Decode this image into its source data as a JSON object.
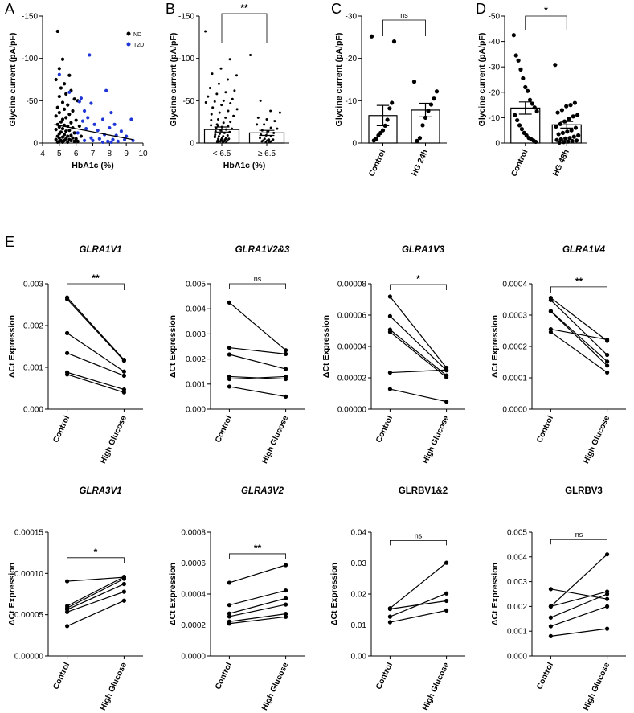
{
  "figure": {
    "panel_letters": [
      "A",
      "B",
      "C",
      "D",
      "E"
    ]
  },
  "colors": {
    "nd": "#000000",
    "t2d": "#1f35d6",
    "bar_fill": "#ffffff",
    "axis": "#000000"
  },
  "chart_data": [
    {
      "id": "A",
      "type": "scatter",
      "xlabel": "HbA1c (%)",
      "ylabel": "Glycine current (pA/pF)",
      "xlim": [
        4,
        10
      ],
      "ylim": [
        0,
        -150
      ],
      "xticks": [
        "4",
        "5",
        "6",
        "7",
        "8",
        "9",
        "10"
      ],
      "yticks": [
        "0",
        "-50",
        "-100",
        "-150"
      ],
      "legend": [
        {
          "name": "ND",
          "color": "#000000"
        },
        {
          "name": "T2D",
          "color": "#1f35d6"
        }
      ],
      "trendline": {
        "x": [
          4.7,
          9.4
        ],
        "y": [
          -22,
          -4
        ]
      },
      "series": [
        {
          "name": "ND",
          "color": "#000000",
          "points": [
            [
              4.9,
              -132
            ],
            [
              5.2,
              -99
            ],
            [
              5.0,
              -88
            ],
            [
              5.6,
              -80
            ],
            [
              4.8,
              -75
            ],
            [
              5.3,
              -70
            ],
            [
              5.1,
              -65
            ],
            [
              5.7,
              -62
            ],
            [
              5.4,
              -58
            ],
            [
              5.0,
              -55
            ],
            [
              5.9,
              -52
            ],
            [
              5.2,
              -48
            ],
            [
              5.5,
              -45
            ],
            [
              4.9,
              -42
            ],
            [
              6.1,
              -50
            ],
            [
              5.3,
              -40
            ],
            [
              5.8,
              -38
            ],
            [
              5.0,
              -36
            ],
            [
              5.6,
              -34
            ],
            [
              4.8,
              -32
            ],
            [
              5.4,
              -30
            ],
            [
              5.2,
              -28
            ],
            [
              6.0,
              -27
            ],
            [
              5.1,
              -25
            ],
            [
              5.7,
              -24
            ],
            [
              4.9,
              -22
            ],
            [
              5.3,
              -21
            ],
            [
              5.5,
              -20
            ],
            [
              5.0,
              -19
            ],
            [
              5.8,
              -18
            ],
            [
              5.2,
              -17
            ],
            [
              4.8,
              -16
            ],
            [
              5.6,
              -15
            ],
            [
              5.4,
              -14
            ],
            [
              5.1,
              -13
            ],
            [
              5.9,
              -12
            ],
            [
              5.0,
              -11
            ],
            [
              5.3,
              -10
            ],
            [
              5.7,
              -9
            ],
            [
              4.9,
              -8
            ],
            [
              5.5,
              -8
            ],
            [
              5.2,
              -7
            ],
            [
              5.8,
              -6
            ],
            [
              5.0,
              -6
            ],
            [
              5.4,
              -5
            ],
            [
              4.8,
              -4
            ],
            [
              5.6,
              -4
            ],
            [
              5.1,
              -3
            ],
            [
              5.3,
              -3
            ],
            [
              5.9,
              -2
            ],
            [
              5.0,
              -2
            ],
            [
              5.2,
              -1
            ],
            [
              5.5,
              -1
            ],
            [
              4.9,
              -1
            ],
            [
              6.2,
              -20
            ],
            [
              6.3,
              -8
            ],
            [
              6.0,
              -5
            ],
            [
              5.7,
              -3
            ],
            [
              6.1,
              -2
            ]
          ]
        },
        {
          "name": "T2D",
          "color": "#1f35d6",
          "points": [
            [
              6.8,
              -104
            ],
            [
              5.0,
              -81
            ],
            [
              7.8,
              -62
            ],
            [
              5.6,
              -60
            ],
            [
              6.3,
              -53
            ],
            [
              6.2,
              -49
            ],
            [
              6.9,
              -47
            ],
            [
              6.5,
              -38
            ],
            [
              8.1,
              -36
            ],
            [
              6.7,
              -30
            ],
            [
              7.6,
              -28
            ],
            [
              9.3,
              -28
            ],
            [
              6.4,
              -26
            ],
            [
              8.3,
              -22
            ],
            [
              7.1,
              -22
            ],
            [
              8.0,
              -18
            ],
            [
              6.6,
              -17
            ],
            [
              7.3,
              -15
            ],
            [
              8.7,
              -14
            ],
            [
              6.1,
              -12
            ],
            [
              7.7,
              -10
            ],
            [
              8.4,
              -9
            ],
            [
              9.0,
              -8
            ],
            [
              6.9,
              -6
            ],
            [
              7.4,
              -5
            ],
            [
              8.2,
              -4
            ],
            [
              8.9,
              -4
            ],
            [
              6.5,
              -3
            ],
            [
              7.0,
              -3
            ],
            [
              7.9,
              -2
            ],
            [
              8.5,
              -2
            ],
            [
              9.4,
              -3
            ],
            [
              7.6,
              -1
            ],
            [
              8.1,
              -1
            ]
          ]
        }
      ]
    },
    {
      "id": "B",
      "type": "bar",
      "categories": [
        "< 6.5",
        "≥ 6.5"
      ],
      "values": [
        -16,
        -12
      ],
      "sem": [
        3,
        3
      ],
      "xlabel": "HbA1c (%)",
      "ylabel": "Glycine current (pA/pF)",
      "ylim": [
        0,
        -150
      ],
      "yticks": [
        "0",
        "-50",
        "-100",
        "-150"
      ],
      "significance": "**",
      "points": [
        [
          -132,
          -99,
          -88,
          -82,
          -80,
          -75,
          -70,
          -65,
          -62,
          -60,
          -58,
          -55,
          -52,
          -50,
          -49,
          -48,
          -47,
          -45,
          -42,
          -40,
          -38,
          -36,
          -34,
          -32,
          -30,
          -28,
          -27,
          -25,
          -24,
          -22,
          -21,
          -20,
          -19,
          -18,
          -17,
          -16,
          -15,
          -14,
          -13,
          -12,
          -11,
          -10,
          -9,
          -8,
          -8,
          -7,
          -6,
          -6,
          -5,
          -5,
          -4,
          -4,
          -3,
          -3,
          -2,
          -2,
          -1,
          -1,
          -1,
          -20,
          -8,
          -5,
          -3,
          -2
        ],
        [
          -104,
          -50,
          -38,
          -36,
          -30,
          -28,
          -26,
          -22,
          -22,
          -18,
          -17,
          -15,
          -14,
          -12,
          -10,
          -9,
          -8,
          -6,
          -5,
          -4,
          -4,
          -3,
          -3,
          -2,
          -2,
          -1,
          -1
        ]
      ]
    },
    {
      "id": "C",
      "type": "bar",
      "categories": [
        "Control",
        "HG 24h"
      ],
      "values": [
        -6.5,
        -7.8
      ],
      "sem": [
        2.4,
        1.6
      ],
      "ylabel": "Glycine current (pA/pF)",
      "ylim": [
        0,
        -30
      ],
      "yticks": [
        "0",
        "-10",
        "-20",
        "-30"
      ],
      "significance": "ns",
      "points": [
        [
          -25.2,
          -24.0,
          -9.5,
          -8.2,
          -5.5,
          -4.1,
          -3.0,
          -2.4,
          -1.8,
          -1.0,
          -0.6
        ],
        [
          -14.5,
          -12.2,
          -10.5,
          -9.1,
          -7.6,
          -6.0,
          -4.2,
          -1.2,
          -0.5
        ]
      ]
    },
    {
      "id": "D",
      "type": "bar",
      "categories": [
        "Control",
        "HG 48h"
      ],
      "values": [
        -13.8,
        -7.2
      ],
      "sem": [
        2.4,
        1.3
      ],
      "ylabel": "Glycine current (pA/pF)",
      "ylim": [
        0,
        -50
      ],
      "yticks": [
        "0",
        "-10",
        "-20",
        "-30",
        "-40",
        "-50"
      ],
      "significance": "*",
      "points": [
        [
          -42.5,
          -34.5,
          -32.5,
          -29,
          -25.5,
          -22,
          -20.5,
          -17,
          -15.5,
          -14,
          -12.5,
          -11,
          -9,
          -7,
          -5.5,
          -4,
          -3,
          -2,
          -1.5,
          -1,
          -0.5
        ],
        [
          -30.8,
          -15.8,
          -15,
          -14.5,
          -13,
          -12,
          -11,
          -10.5,
          -9.5,
          -8.5,
          -7.5,
          -6.5,
          -6,
          -5,
          -4.5,
          -4,
          -3.5,
          -3,
          -2.5,
          -2,
          -1.8,
          -1.5,
          -1.2,
          -1,
          -0.8,
          -0.6,
          -0.4,
          -0.2
        ]
      ]
    },
    {
      "id": "GLRA1V1",
      "type": "line",
      "title": "GLRA1V1",
      "title_italic": true,
      "categories": [
        "Control",
        "High Glucose"
      ],
      "ylabel": "ΔCt Expression",
      "ylim": [
        0,
        0.003
      ],
      "yticks": [
        "0.000",
        "0.001",
        "0.002",
        "0.003"
      ],
      "significance": "**",
      "pairs": [
        [
          0.00267,
          0.00118
        ],
        [
          0.00263,
          0.00116
        ],
        [
          0.00182,
          0.0009
        ],
        [
          0.00134,
          0.0008
        ],
        [
          0.00088,
          0.00047
        ],
        [
          0.00083,
          0.0004
        ]
      ]
    },
    {
      "id": "GLRA1V2&3",
      "type": "line",
      "title": "GLRA1V2&3",
      "title_italic": true,
      "categories": [
        "Control",
        "High Glucose"
      ],
      "ylabel": "ΔCt Expression",
      "ylim": [
        0,
        0.005
      ],
      "yticks": [
        "0.000",
        "0.001",
        "0.002",
        "0.003",
        "0.004",
        "0.005"
      ],
      "significance": "ns",
      "pairs": [
        [
          0.00425,
          0.00235
        ],
        [
          0.00245,
          0.0022
        ],
        [
          0.00218,
          0.0016
        ],
        [
          0.0013,
          0.0012
        ],
        [
          0.0012,
          0.0013
        ],
        [
          0.0009,
          0.0005
        ]
      ]
    },
    {
      "id": "GLRA1V3",
      "type": "line",
      "title": "GLRA1V3",
      "title_italic": true,
      "categories": [
        "Control",
        "High Glucose"
      ],
      "ylabel": "ΔCt Expression",
      "ylim": [
        0,
        8e-05
      ],
      "yticks": [
        "0.00000",
        "0.00002",
        "0.00004",
        "0.00006",
        "0.00008"
      ],
      "significance": "*",
      "pairs": [
        [
          7.18e-05,
          2.64e-05
        ],
        [
          5.93e-05,
          2.48e-05
        ],
        [
          5.07e-05,
          2.15e-05
        ],
        [
          4.92e-05,
          2.03e-05
        ],
        [
          2.33e-05,
          2.5e-05
        ],
        [
          1.28e-05,
          4.8e-06
        ]
      ]
    },
    {
      "id": "GLRA1V4",
      "type": "line",
      "title": "GLRA1V4",
      "title_italic": true,
      "categories": [
        "Control",
        "High Glucose"
      ],
      "ylabel": "ΔCt Expression",
      "ylim": [
        0,
        0.0004
      ],
      "yticks": [
        "0.0000",
        "0.0001",
        "0.0002",
        "0.0003",
        "0.0004"
      ],
      "significance": "**",
      "pairs": [
        [
          0.000355,
          0.000218
        ],
        [
          0.000348,
          0.000173
        ],
        [
          0.000313,
          0.000152
        ],
        [
          0.000312,
          0.000139
        ],
        [
          0.000255,
          0.000222
        ],
        [
          0.000246,
          0.000117
        ]
      ]
    },
    {
      "id": "GLRA3V1",
      "type": "line",
      "title": "GLRA3V1",
      "title_italic": true,
      "categories": [
        "Control",
        "High Glucose"
      ],
      "ylabel": "ΔCt Expression",
      "ylim": [
        0,
        0.00015
      ],
      "yticks": [
        "0.00000",
        "0.00005",
        "0.00010",
        "0.00015"
      ],
      "significance": "*",
      "pairs": [
        [
          9.05e-05,
          9.53e-05
        ],
        [
          5.82e-05,
          9.35e-05
        ],
        [
          5.62e-05,
          8.72e-05
        ],
        [
          5.33e-05,
          7.78e-05
        ],
        [
          3.62e-05,
          6.7e-05
        ],
        [
          6.05e-05,
          9.58e-05
        ]
      ]
    },
    {
      "id": "GLRA3V2",
      "type": "line",
      "title": "GLRA3V2",
      "title_italic": true,
      "categories": [
        "Control",
        "High Glucose"
      ],
      "ylabel": "ΔCt Expression",
      "ylim": [
        0,
        0.0008
      ],
      "yticks": [
        "0.0000",
        "0.0002",
        "0.0004",
        "0.0006",
        "0.0008"
      ],
      "significance": "**",
      "pairs": [
        [
          0.000473,
          0.000587
        ],
        [
          0.000329,
          0.000423
        ],
        [
          0.000274,
          0.000372
        ],
        [
          0.000255,
          0.000332
        ],
        [
          0.000222,
          0.000272
        ],
        [
          0.000209,
          0.000253
        ]
      ]
    },
    {
      "id": "GLRBV1&2",
      "type": "line",
      "title": "GLRBV1&2",
      "title_italic": false,
      "categories": [
        "Control",
        "High Glucose"
      ],
      "ylabel": "ΔCt Expression",
      "ylim": [
        0,
        0.04
      ],
      "yticks": [
        "0.00",
        "0.01",
        "0.02",
        "0.03",
        "0.04"
      ],
      "significance": "ns",
      "pairs": [
        [
          0.0154,
          0.0301
        ],
        [
          0.0152,
          0.0178
        ],
        [
          0.0127,
          0.0202
        ],
        [
          0.0109,
          0.0147
        ]
      ]
    },
    {
      "id": "GLRBV3",
      "type": "line",
      "title": "GLRBV3",
      "title_italic": false,
      "categories": [
        "Control",
        "High Glucose"
      ],
      "ylabel": "ΔCt Expression",
      "ylim": [
        0,
        0.005
      ],
      "yticks": [
        "0.000",
        "0.001",
        "0.002",
        "0.003",
        "0.004",
        "0.005"
      ],
      "significance": "ns",
      "pairs": [
        [
          0.0027,
          0.0023
        ],
        [
          0.002,
          0.0041
        ],
        [
          0.002,
          0.0026
        ],
        [
          0.00155,
          0.0025
        ],
        [
          0.0012,
          0.002
        ],
        [
          0.0008,
          0.0011
        ]
      ]
    }
  ]
}
